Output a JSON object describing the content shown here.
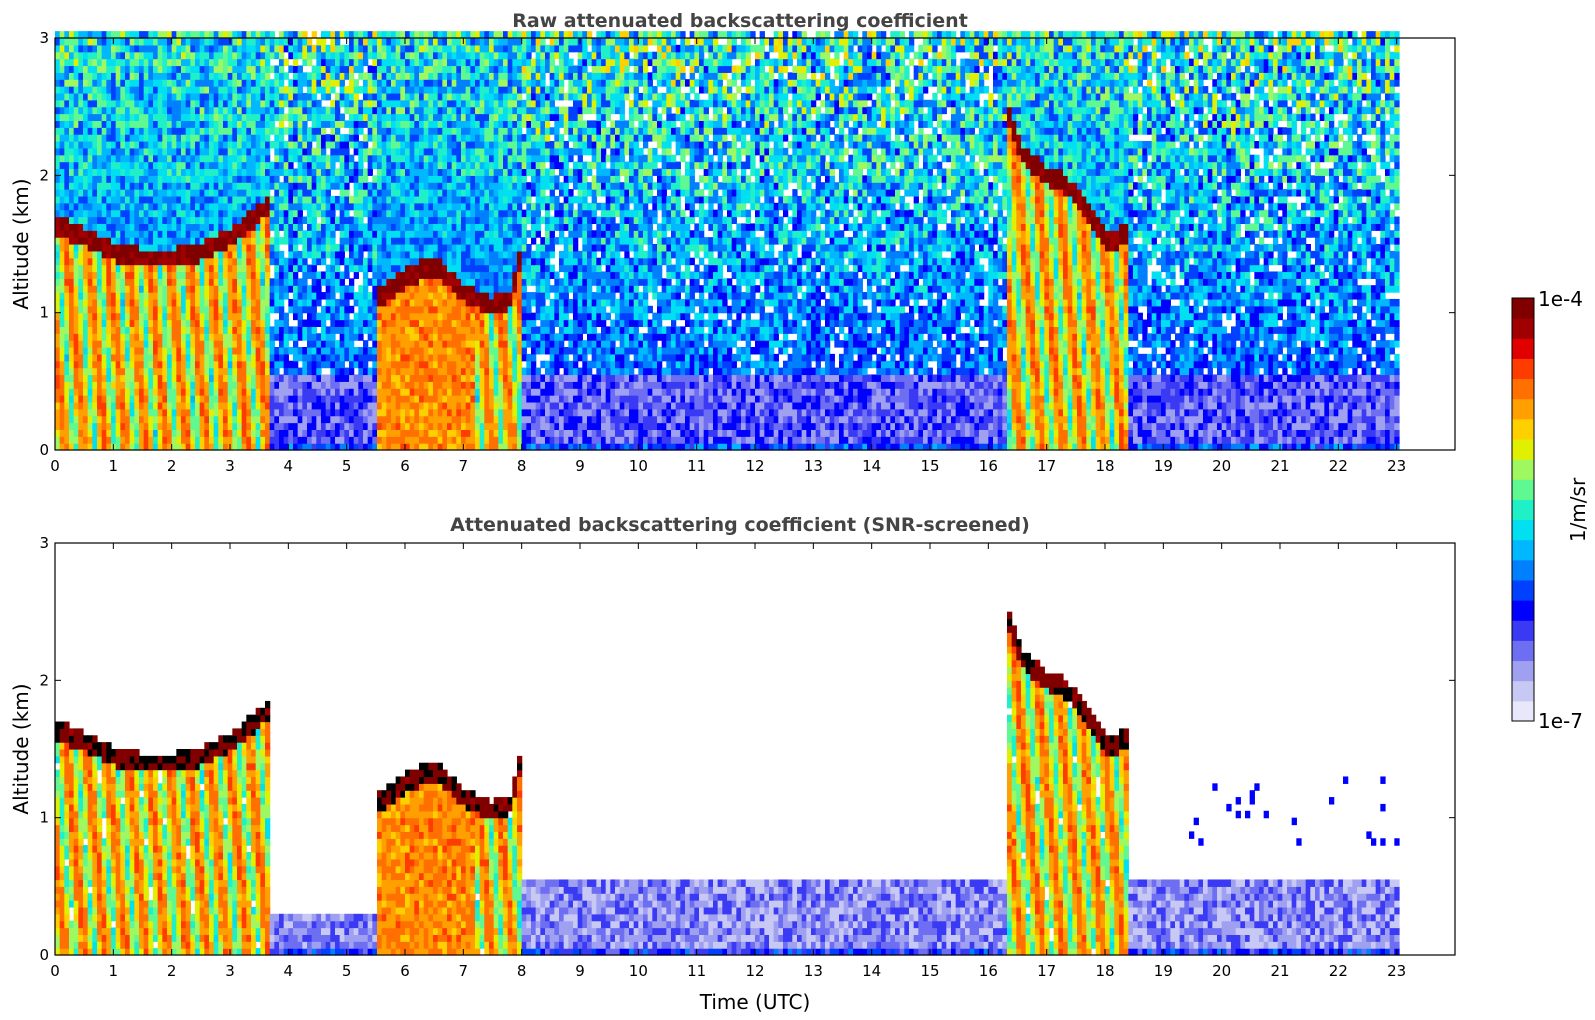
{
  "colormap": [
    "#e8e8fa",
    "#c8c8f5",
    "#a0a0f0",
    "#6e6ef2",
    "#3a3af5",
    "#0000ff",
    "#0040ff",
    "#0080ff",
    "#00b8ff",
    "#00e0f0",
    "#20f0c8",
    "#60f890",
    "#a0f860",
    "#e0f000",
    "#ffd000",
    "#ffa000",
    "#ff7000",
    "#ff3c00",
    "#e00000",
    "#a00000",
    "#800000"
  ],
  "chart_data": [
    {
      "type": "heatmap",
      "title": "Raw attenuated backscattering coefficient",
      "xlabel": "",
      "ylabel": "Altitude (km)",
      "xlim": [
        0,
        24
      ],
      "ylim": [
        0,
        3
      ],
      "x_ticks": [
        "0",
        "1",
        "2",
        "3",
        "4",
        "5",
        "6",
        "7",
        "8",
        "9",
        "10",
        "11",
        "12",
        "13",
        "14",
        "15",
        "16",
        "17",
        "18",
        "19",
        "20",
        "21",
        "22",
        "23"
      ],
      "y_ticks": [
        "0",
        "1",
        "2",
        "3"
      ],
      "data_end_hour": 23,
      "cloud_layers": [
        {
          "x": [
            0.0,
            0.5,
            1.0,
            1.5,
            2.0,
            2.5,
            3.0,
            3.3,
            3.7
          ],
          "y": [
            1.65,
            1.55,
            1.45,
            1.4,
            1.4,
            1.45,
            1.55,
            1.65,
            1.8
          ]
        },
        {
          "x": [
            5.5,
            6.0,
            6.5,
            7.0,
            7.5,
            7.8,
            8.0
          ],
          "y": [
            1.1,
            1.25,
            1.35,
            1.15,
            1.05,
            1.1,
            1.45
          ]
        },
        {
          "x": [
            16.3,
            16.6,
            17.0,
            17.3,
            17.7,
            18.1,
            18.4
          ],
          "y": [
            2.5,
            2.15,
            2.0,
            1.95,
            1.75,
            1.5,
            1.6
          ]
        }
      ],
      "boundary_layer_top_km": 0.55,
      "colorbar": {
        "min_label": "1e-7",
        "max_label": "1e-4",
        "unit": "1/m/sr"
      }
    },
    {
      "type": "heatmap",
      "title": "Attenuated backscattering coefficient (SNR-screened)",
      "xlabel": "Time (UTC)",
      "ylabel": "Altitude (km)",
      "xlim": [
        0,
        24
      ],
      "ylim": [
        0,
        3
      ],
      "x_ticks": [
        "0",
        "1",
        "2",
        "3",
        "4",
        "5",
        "6",
        "7",
        "8",
        "9",
        "10",
        "11",
        "12",
        "13",
        "14",
        "15",
        "16",
        "17",
        "18",
        "19",
        "20",
        "21",
        "22",
        "23"
      ],
      "y_ticks": [
        "0",
        "1",
        "2",
        "3"
      ],
      "data_end_hour": 23,
      "screened": true
    }
  ],
  "colorbar": {
    "top_label": "1e-4",
    "bottom_label": "1e-7",
    "unit_label": "1/m/sr"
  }
}
